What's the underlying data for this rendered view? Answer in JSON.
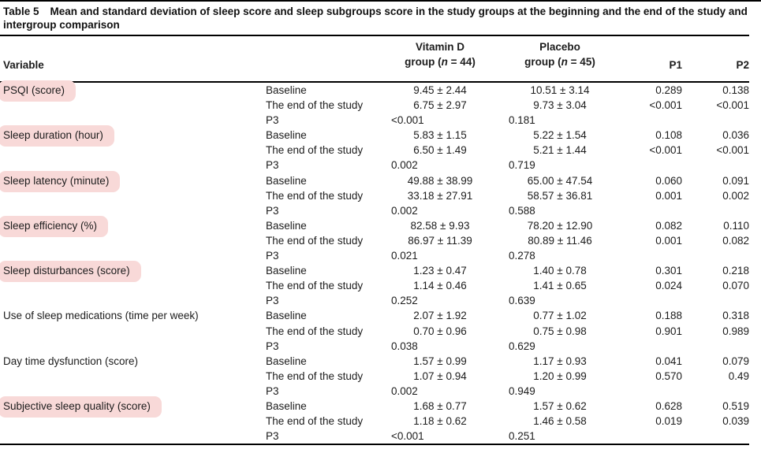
{
  "title": {
    "prefix": "Table 5",
    "text": "Mean and standard deviation of sleep score and sleep subgroups score in the study groups at the beginning and the end of the study and intergroup comparison"
  },
  "colors": {
    "highlight": "#f8d9d8"
  },
  "header": {
    "variable": "Variable",
    "vitamin": {
      "line1": "Vitamin D",
      "pre": "group (",
      "n": "n",
      "post": " = 44)"
    },
    "placebo": {
      "line1": "Placebo",
      "pre": "group (",
      "n": "n",
      "post": " = 45)"
    },
    "p1": "P1",
    "p2": "P2"
  },
  "groups": [
    {
      "variable": "PSQI (score)",
      "highlight": true,
      "rows": [
        {
          "label": "Baseline",
          "vitamin": "9.45 ± 2.44",
          "placebo": "10.51 ± 3.14",
          "p1": "0.289",
          "p2": "0.138"
        },
        {
          "label": "The end of the study",
          "vitamin": "6.75 ± 2.97",
          "placebo": "9.73 ± 3.04",
          "p1": "<0.001",
          "p2": "<0.001"
        },
        {
          "label": "P3",
          "vitamin": "<0.001",
          "placebo": "0.181",
          "p1": "",
          "p2": ""
        }
      ]
    },
    {
      "variable": "Sleep duration (hour)",
      "highlight": true,
      "rows": [
        {
          "label": "Baseline",
          "vitamin": "5.83 ± 1.15",
          "placebo": "5.22 ± 1.54",
          "p1": "0.108",
          "p2": "0.036"
        },
        {
          "label": "The end of the study",
          "vitamin": "6.50 ± 1.49",
          "placebo": "5.21 ± 1.44",
          "p1": "<0.001",
          "p2": "<0.001"
        },
        {
          "label": "P3",
          "vitamin": "0.002",
          "placebo": "0.719",
          "p1": "",
          "p2": ""
        }
      ]
    },
    {
      "variable": "Sleep latency (minute)",
      "highlight": true,
      "rows": [
        {
          "label": "Baseline",
          "vitamin": "49.88 ± 38.99",
          "placebo": "65.00 ± 47.54",
          "p1": "0.060",
          "p2": "0.091"
        },
        {
          "label": "The end of the study",
          "vitamin": "33.18 ± 27.91",
          "placebo": "58.57 ± 36.81",
          "p1": "0.001",
          "p2": "0.002"
        },
        {
          "label": "P3",
          "vitamin": "0.002",
          "placebo": "0.588",
          "p1": "",
          "p2": ""
        }
      ]
    },
    {
      "variable": "Sleep efficiency (%)",
      "highlight": true,
      "rows": [
        {
          "label": "Baseline",
          "vitamin": "82.58 ± 9.93",
          "placebo": "78.20 ± 12.90",
          "p1": "0.082",
          "p2": "0.110"
        },
        {
          "label": "The end of the study",
          "vitamin": "86.97 ± 11.39",
          "placebo": "80.89 ± 11.46",
          "p1": "0.001",
          "p2": "0.082"
        },
        {
          "label": "P3",
          "vitamin": "0.021",
          "placebo": "0.278",
          "p1": "",
          "p2": ""
        }
      ]
    },
    {
      "variable": "Sleep disturbances (score)",
      "highlight": true,
      "rows": [
        {
          "label": "Baseline",
          "vitamin": "1.23 ± 0.47",
          "placebo": "1.40 ± 0.78",
          "p1": "0.301",
          "p2": "0.218"
        },
        {
          "label": "The end of the study",
          "vitamin": "1.14 ± 0.46",
          "placebo": "1.41 ± 0.65",
          "p1": "0.024",
          "p2": "0.070"
        },
        {
          "label": "P3",
          "vitamin": "0.252",
          "placebo": "0.639",
          "p1": "",
          "p2": ""
        }
      ]
    },
    {
      "variable": "Use of sleep medications (time per week)",
      "highlight": false,
      "rows": [
        {
          "label": "Baseline",
          "vitamin": "2.07 ± 1.92",
          "placebo": "0.77 ± 1.02",
          "p1": "0.188",
          "p2": "0.318"
        },
        {
          "label": "The end of the study",
          "vitamin": "0.70 ± 0.96",
          "placebo": "0.75 ± 0.98",
          "p1": "0.901",
          "p2": "0.989"
        },
        {
          "label": "P3",
          "vitamin": "0.038",
          "placebo": "0.629",
          "p1": "",
          "p2": ""
        }
      ]
    },
    {
      "variable": "Day time dysfunction (score)",
      "highlight": false,
      "rows": [
        {
          "label": "Baseline",
          "vitamin": "1.57 ± 0.99",
          "placebo": "1.17 ± 0.93",
          "p1": "0.041",
          "p2": "0.079"
        },
        {
          "label": "The end of the study",
          "vitamin": "1.07 ± 0.94",
          "placebo": "1.20 ± 0.99",
          "p1": "0.570",
          "p2": "0.49"
        },
        {
          "label": "P3",
          "vitamin": "0.002",
          "placebo": "0.949",
          "p1": "",
          "p2": ""
        }
      ]
    },
    {
      "variable": "Subjective sleep quality (score)",
      "highlight": true,
      "rows": [
        {
          "label": "Baseline",
          "vitamin": "1.68 ± 0.77",
          "placebo": "1.57 ± 0.62",
          "p1": "0.628",
          "p2": "0.519"
        },
        {
          "label": "The end of the study",
          "vitamin": "1.18 ± 0.62",
          "placebo": "1.46 ± 0.58",
          "p1": "0.019",
          "p2": "0.039"
        },
        {
          "label": "P3",
          "vitamin": "<0.001",
          "placebo": "0.251",
          "p1": "",
          "p2": ""
        }
      ]
    }
  ]
}
